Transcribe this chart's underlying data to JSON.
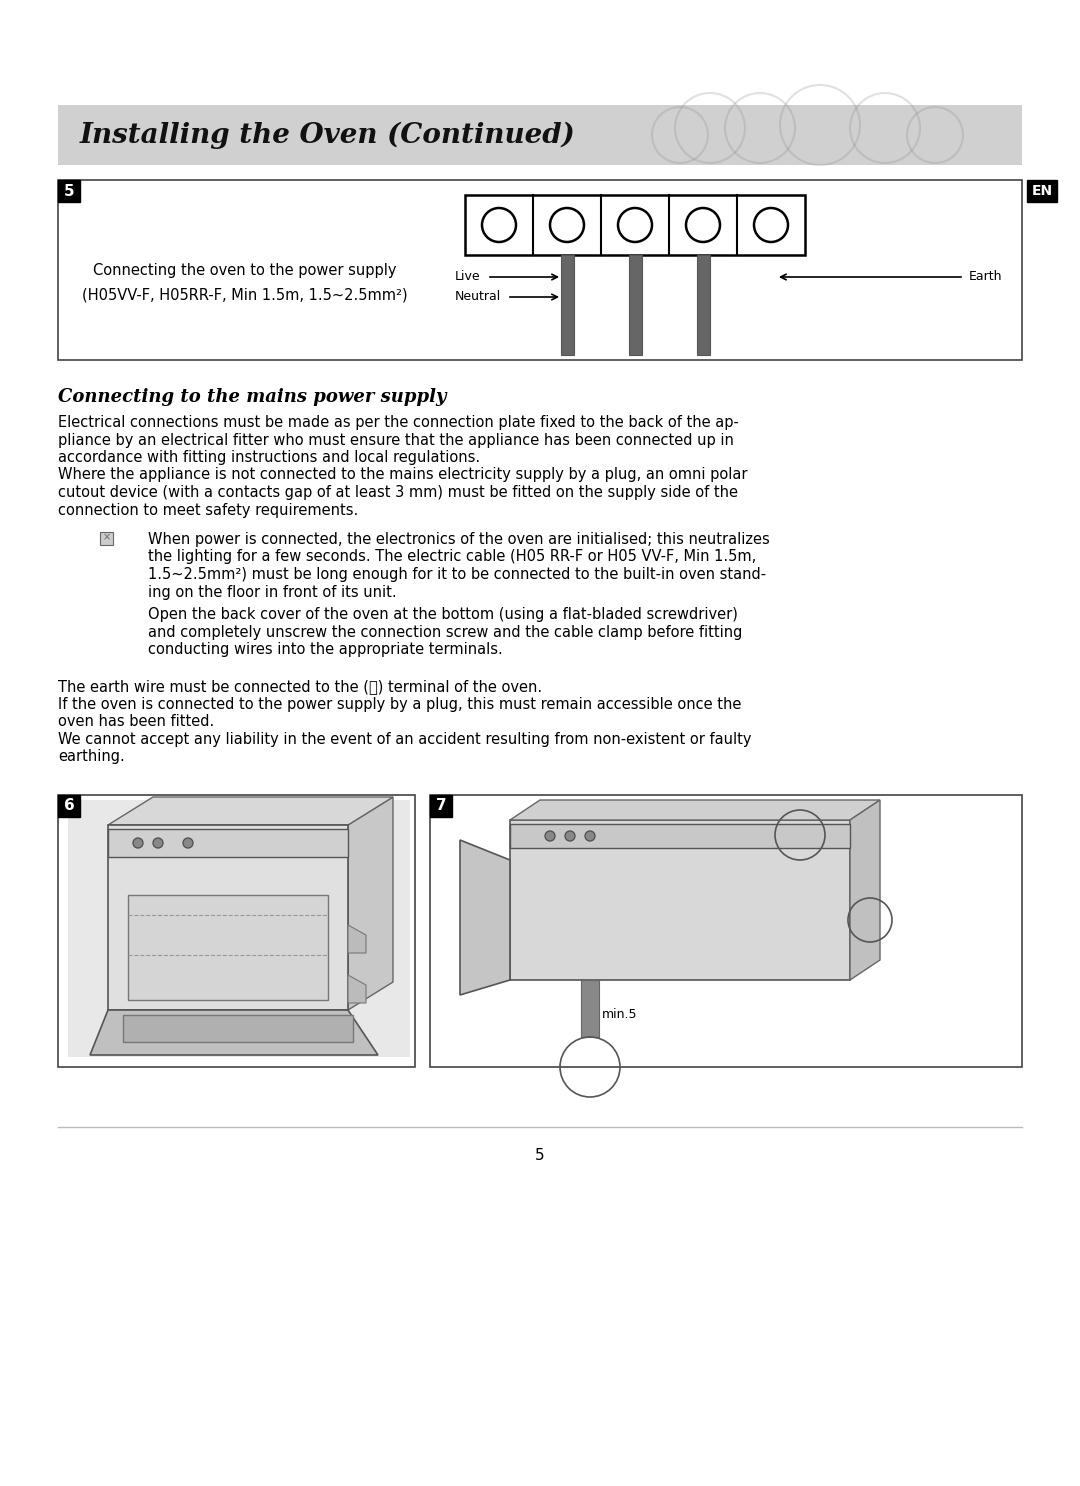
{
  "page_background": "#ffffff",
  "header_bg": "#d0d0d0",
  "header_title": "Installing the Oven (Continued)",
  "header_title_size": 20,
  "section5_label": "5",
  "en_label": "EN",
  "diagram_caption_line1": "Connecting the oven to the power supply",
  "diagram_caption_line2": "(H05VV-F, H05RR-F, Min 1.5m, 1.5~2.5mm²)",
  "section_heading": "Connecting to the mains power supply",
  "para1_line1": "Electrical connections must be made as per the connection plate fixed to the back of the ap-",
  "para1_line2": "pliance by an electrical fitter who must ensure that the appliance has been connected up in",
  "para1_line3": "accordance with fitting instructions and local regulations.",
  "para1_line4": "Where the appliance is not connected to the mains electricity supply by a plug, an omni polar",
  "para1_line5": "cutout device (with a contacts gap of at least 3 mm) must be fitted on the supply side of the",
  "para1_line6": "connection to meet safety requirements.",
  "bullet1_line1": "When power is connected, the electronics of the oven are initialised; this neutralizes",
  "bullet1_line2": "the lighting for a few seconds. The electric cable (H05 RR-F or H05 VV-F, Min 1.5m,",
  "bullet1_line3": "1.5~2.5mm²) must be long enough for it to be connected to the built-in oven stand-",
  "bullet1_line4": "ing on the floor in front of its unit.",
  "bullet2_line1": "Open the back cover of the oven at the bottom (using a flat-bladed screwdriver)",
  "bullet2_line2": "and completely unscrew the connection screw and the cable clamp before fitting",
  "bullet2_line3": "conducting wires into the appropriate terminals.",
  "para2_line1": "The earth wire must be connected to the (⏚) terminal of the oven.",
  "para2_line2": "If the oven is connected to the power supply by a plug, this must remain accessible once the",
  "para2_line3": "oven has been fitted.",
  "para2_line4": "We cannot accept any liability in the event of an accident resulting from non-existent or faulty",
  "para2_line5": "earthing.",
  "section6_label": "6",
  "section7_label": "7",
  "min5_label": "min.5",
  "page_number": "5",
  "text_color": "#000000",
  "body_fontsize": 10.5,
  "heading_fontsize": 13,
  "live_label": "Live",
  "neutral_label": "Neutral",
  "earth_label": "Earth"
}
